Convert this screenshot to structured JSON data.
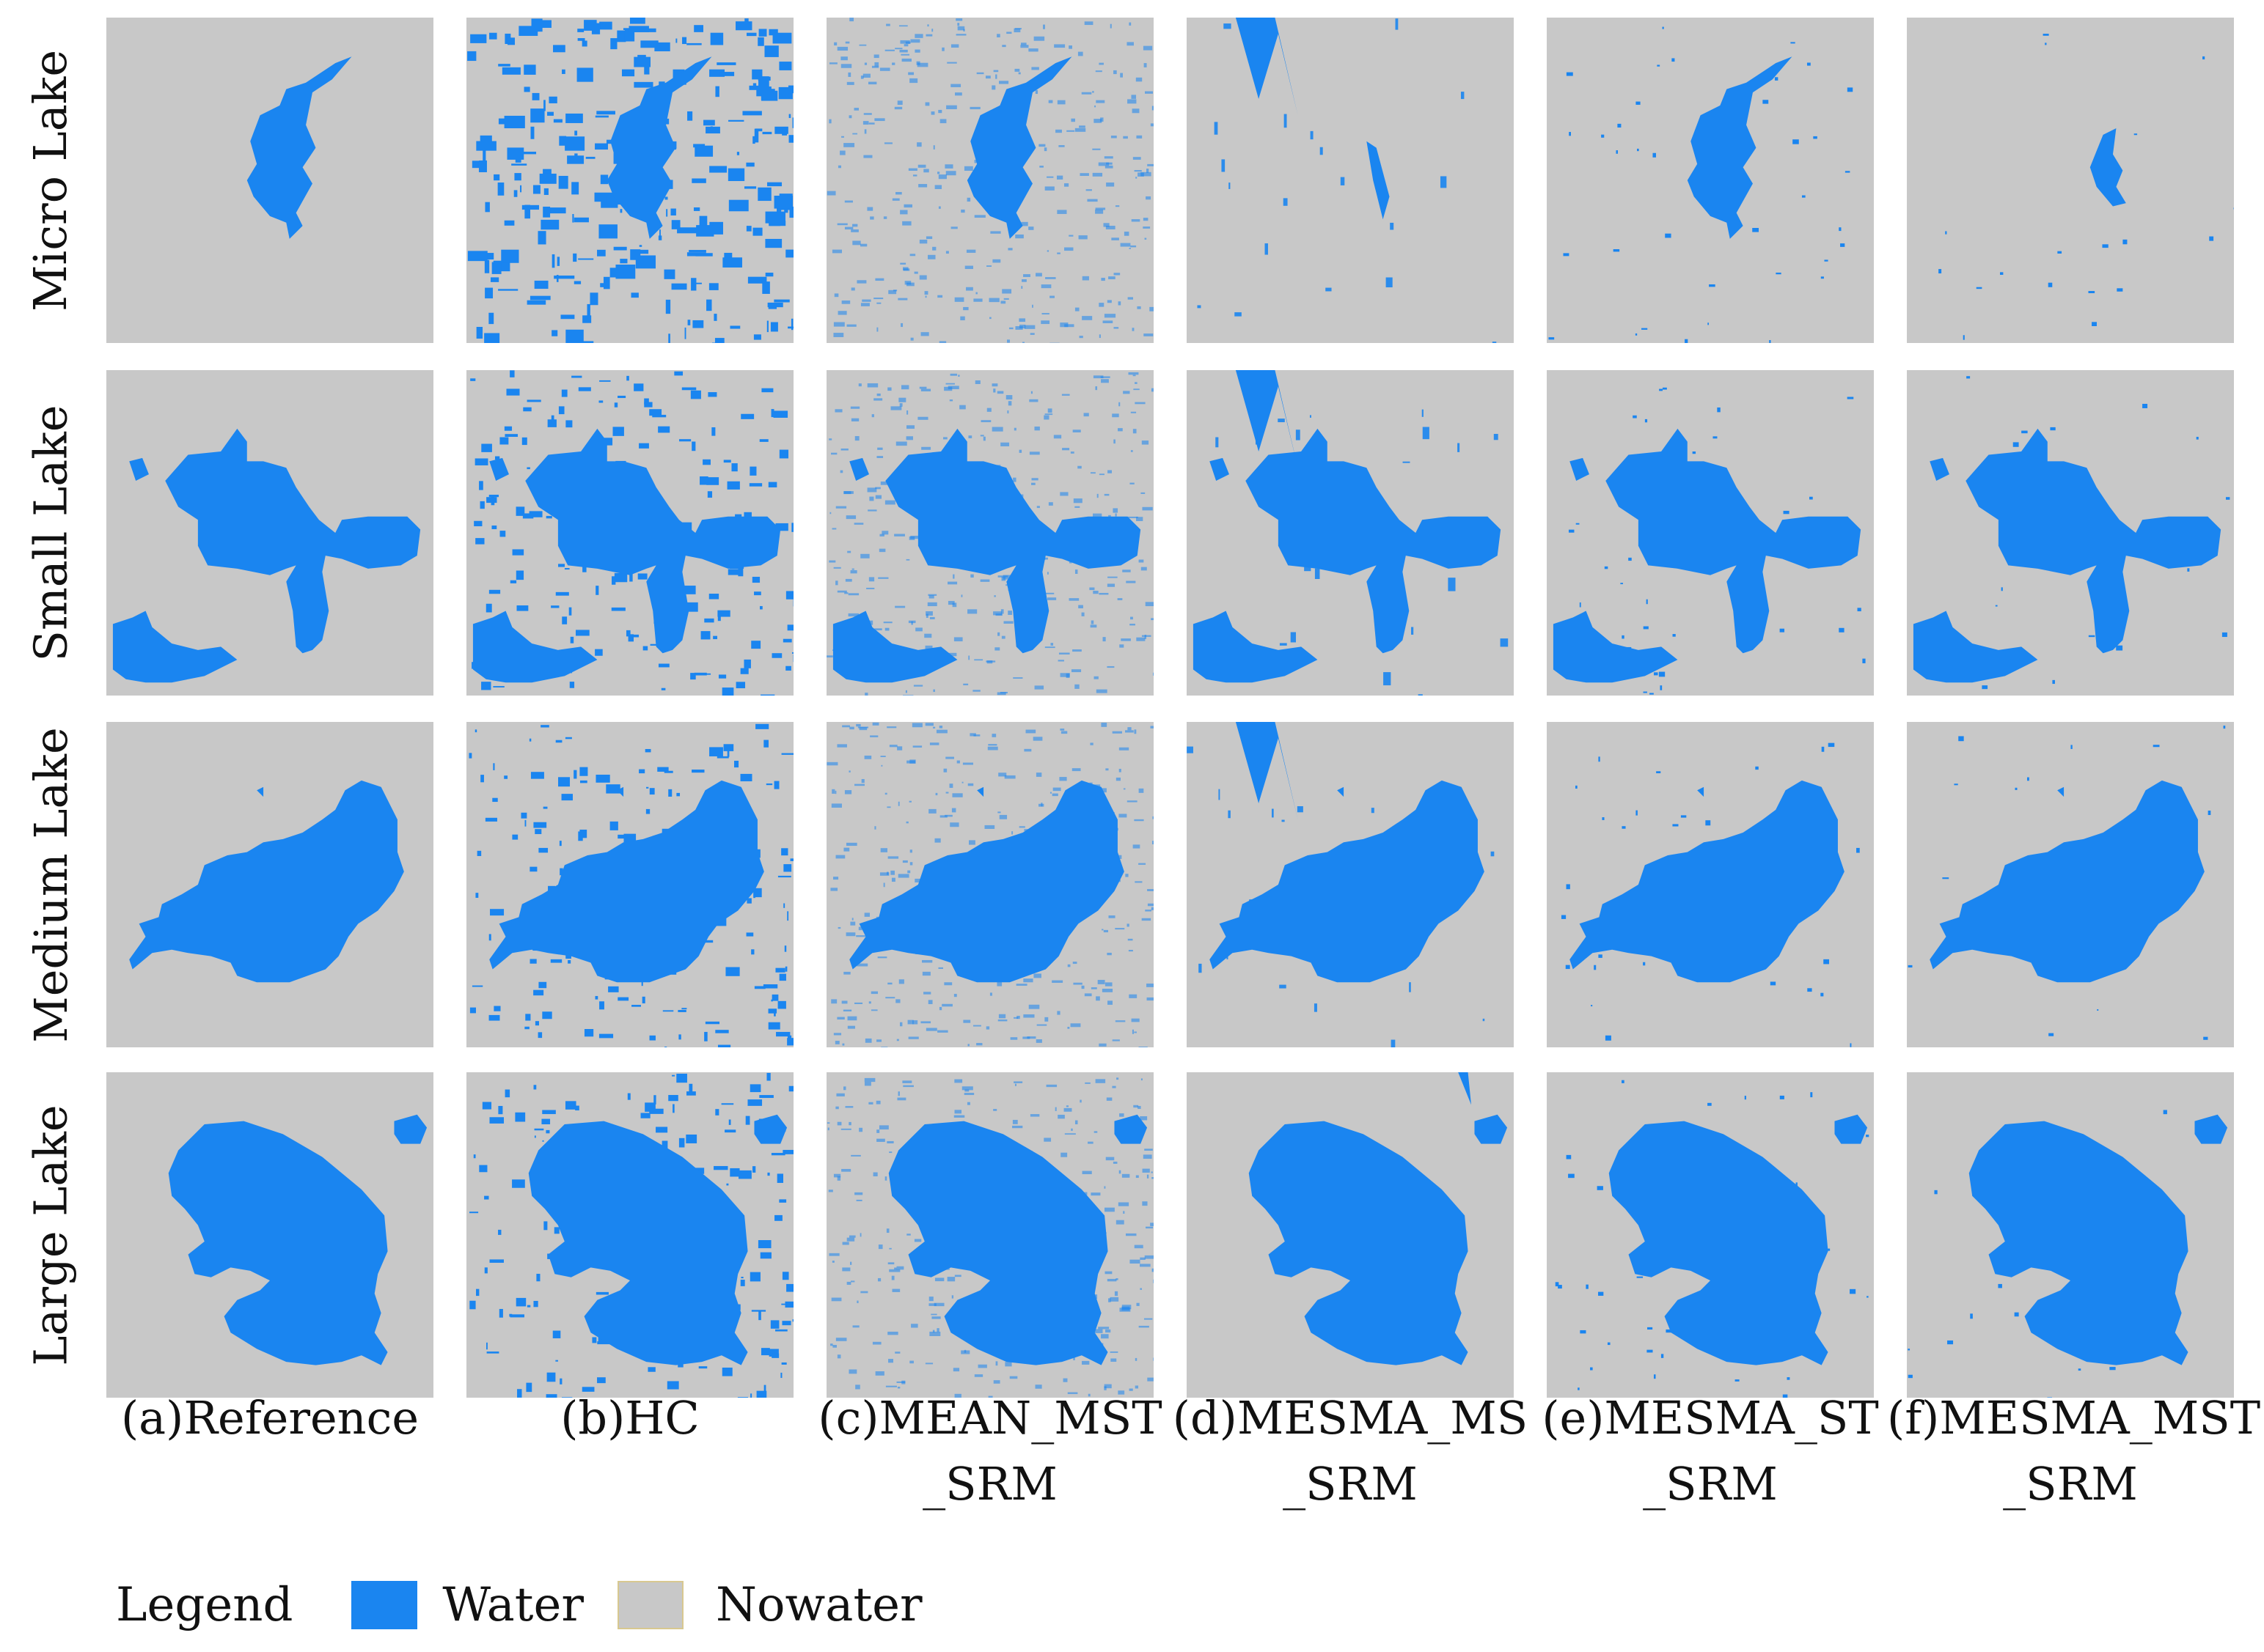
{
  "colors": {
    "water": "#1a85f0",
    "nowater": "#c8c8c8",
    "text": "#111111"
  },
  "rows": [
    {
      "key": "micro",
      "label": "Micro Lake"
    },
    {
      "key": "small",
      "label": "Small Lake"
    },
    {
      "key": "medium",
      "label": "Medium Lake"
    },
    {
      "key": "large",
      "label": "Large Lake"
    }
  ],
  "columns": [
    {
      "key": "a",
      "label": "(a)Reference"
    },
    {
      "key": "b",
      "label": "(b)HC"
    },
    {
      "key": "c",
      "label": "(c)MEAN_MST\n_SRM"
    },
    {
      "key": "d",
      "label": "(d)MESMA_MS\n_SRM"
    },
    {
      "key": "e",
      "label": "(e)MESMA_ST\n_SRM"
    },
    {
      "key": "f",
      "label": "(f)MESMA_MST\n_SRM"
    }
  ],
  "legend": {
    "title": "Legend",
    "water_label": "Water",
    "nowater_label": "Nowater"
  }
}
